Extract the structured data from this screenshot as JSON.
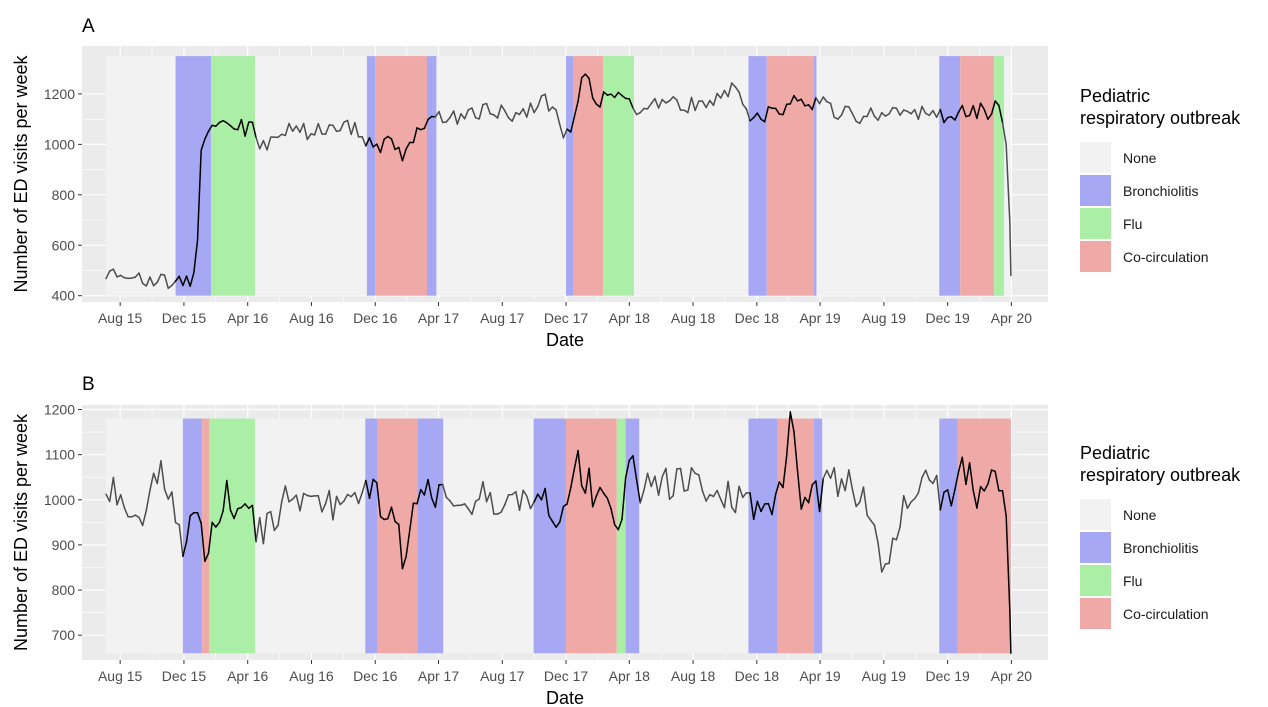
{
  "colors": {
    "panel_bg": "#EBEBEB",
    "grid": "#FFFFFF",
    "None": "#F2F2F2",
    "Bronchiolitis": "#A7A8F3",
    "Flu": "#ABEFA7",
    "Co-circulation": "#EFA9A7",
    "line_outbreak": "#000000",
    "line_none": "#4D4D4D"
  },
  "legend": {
    "title_line1": "Pediatric",
    "title_line2": "respiratory outbreak",
    "items": [
      "None",
      "Bronchiolitis",
      "Flu",
      "Co-circulation"
    ]
  },
  "chart_data": [
    {
      "type": "line",
      "panel": "A",
      "xlabel": "Date",
      "ylabel": "Number of ED visits per week",
      "x_ticks": [
        "Aug 15",
        "Dec 15",
        "Apr 16",
        "Aug 16",
        "Dec 16",
        "Apr 17",
        "Aug 17",
        "Dec 17",
        "Apr 18",
        "Aug 18",
        "Dec 18",
        "Apr 19",
        "Aug 19",
        "Dec 19",
        "Apr 20"
      ],
      "x_tick_dates": [
        "2015-08-01",
        "2015-12-01",
        "2016-04-01",
        "2016-08-01",
        "2016-12-01",
        "2017-04-01",
        "2017-08-01",
        "2017-12-01",
        "2018-04-01",
        "2018-08-01",
        "2018-12-01",
        "2019-04-01",
        "2019-08-01",
        "2019-12-01",
        "2020-04-01"
      ],
      "xlim": [
        "2015-05-20",
        "2020-06-10"
      ],
      "y_ticks": [
        400,
        600,
        800,
        1000,
        1200
      ],
      "ylim": [
        375,
        1390
      ],
      "band_range": [
        400,
        1350
      ],
      "grid": true,
      "legend_position": "right",
      "outbreaks": [
        {
          "type": "Bronchiolitis",
          "start": "2015-11-15",
          "end": "2016-01-22"
        },
        {
          "type": "Flu",
          "start": "2016-01-22",
          "end": "2016-04-15"
        },
        {
          "type": "Bronchiolitis",
          "start": "2016-11-15",
          "end": "2016-12-01"
        },
        {
          "type": "Co-circulation",
          "start": "2016-12-01",
          "end": "2017-03-10"
        },
        {
          "type": "Bronchiolitis",
          "start": "2017-03-10",
          "end": "2017-03-28"
        },
        {
          "type": "Bronchiolitis",
          "start": "2017-12-01",
          "end": "2017-12-15"
        },
        {
          "type": "Co-circulation",
          "start": "2017-12-15",
          "end": "2018-02-10"
        },
        {
          "type": "Flu",
          "start": "2018-02-10",
          "end": "2018-04-10"
        },
        {
          "type": "Bronchiolitis",
          "start": "2018-11-15",
          "end": "2018-12-20"
        },
        {
          "type": "Co-circulation",
          "start": "2018-12-20",
          "end": "2019-03-20"
        },
        {
          "type": "Bronchiolitis",
          "start": "2019-03-20",
          "end": "2019-03-25"
        },
        {
          "type": "Bronchiolitis",
          "start": "2019-11-15",
          "end": "2019-12-25"
        },
        {
          "type": "Co-circulation",
          "start": "2019-12-25",
          "end": "2020-02-28"
        },
        {
          "type": "Flu",
          "start": "2020-02-28",
          "end": "2020-03-18"
        }
      ],
      "series_points": [
        [
          "2015-07-05",
          490
        ],
        [
          "2015-07-25",
          475
        ],
        [
          "2015-08-15",
          455
        ],
        [
          "2015-09-10",
          475
        ],
        [
          "2015-10-10",
          465
        ],
        [
          "2015-11-10",
          455
        ],
        [
          "2015-12-01",
          460
        ],
        [
          "2015-12-20",
          470
        ],
        [
          "2015-12-29",
          640
        ],
        [
          "2016-01-03",
          990
        ],
        [
          "2016-01-22",
          1050
        ],
        [
          "2016-02-20",
          1080
        ],
        [
          "2016-03-20",
          1070
        ],
        [
          "2016-04-10",
          1060
        ],
        [
          "2016-04-20",
          980
        ],
        [
          "2016-06-15",
          1050
        ],
        [
          "2016-08-15",
          1050
        ],
        [
          "2016-10-15",
          1070
        ],
        [
          "2016-11-25",
          1000
        ],
        [
          "2016-12-25",
          1000
        ],
        [
          "2017-01-20",
          960
        ],
        [
          "2017-02-20",
          1060
        ],
        [
          "2017-03-20",
          1120
        ],
        [
          "2017-05-01",
          1100
        ],
        [
          "2017-07-01",
          1130
        ],
        [
          "2017-09-01",
          1120
        ],
        [
          "2017-10-20",
          1180
        ],
        [
          "2017-12-01",
          1040
        ],
        [
          "2017-12-20",
          1100
        ],
        [
          "2018-01-03",
          1340
        ],
        [
          "2018-01-20",
          1190
        ],
        [
          "2018-02-20",
          1170
        ],
        [
          "2018-03-10",
          1220
        ],
        [
          "2018-04-10",
          1150
        ],
        [
          "2018-06-15",
          1170
        ],
        [
          "2018-08-15",
          1150
        ],
        [
          "2018-10-20",
          1220
        ],
        [
          "2018-11-25",
          1100
        ],
        [
          "2018-12-25",
          1120
        ],
        [
          "2019-02-01",
          1160
        ],
        [
          "2019-03-20",
          1170
        ],
        [
          "2019-05-15",
          1120
        ],
        [
          "2019-07-01",
          1110
        ],
        [
          "2019-08-15",
          1150
        ],
        [
          "2019-10-15",
          1120
        ],
        [
          "2019-11-25",
          1110
        ],
        [
          "2019-12-25",
          1140
        ],
        [
          "2020-01-25",
          1130
        ],
        [
          "2020-02-20",
          1130
        ],
        [
          "2020-03-05",
          1180
        ],
        [
          "2020-03-20",
          1040
        ],
        [
          "2020-03-27",
          900
        ],
        [
          "2020-03-31",
          480
        ]
      ]
    },
    {
      "type": "line",
      "panel": "B",
      "xlabel": "Date",
      "ylabel": "Number of ED visits per week",
      "x_ticks": [
        "Aug 15",
        "Dec 15",
        "Apr 16",
        "Aug 16",
        "Dec 16",
        "Apr 17",
        "Aug 17",
        "Dec 17",
        "Apr 18",
        "Aug 18",
        "Dec 18",
        "Apr 19",
        "Aug 19",
        "Dec 19",
        "Apr 20"
      ],
      "x_tick_dates": [
        "2015-08-01",
        "2015-12-01",
        "2016-04-01",
        "2016-08-01",
        "2016-12-01",
        "2017-04-01",
        "2017-08-01",
        "2017-12-01",
        "2018-04-01",
        "2018-08-01",
        "2018-12-01",
        "2019-04-01",
        "2019-08-01",
        "2019-12-01",
        "2020-04-01"
      ],
      "xlim": [
        "2015-05-20",
        "2020-06-10"
      ],
      "y_ticks": [
        700,
        800,
        900,
        1000,
        1100,
        1200
      ],
      "ylim": [
        645,
        1210
      ],
      "band_range": [
        660,
        1180
      ],
      "grid": true,
      "legend_position": "right",
      "outbreaks": [
        {
          "type": "Bronchiolitis",
          "start": "2015-11-29",
          "end": "2016-01-05"
        },
        {
          "type": "Co-circulation",
          "start": "2016-01-05",
          "end": "2016-01-18"
        },
        {
          "type": "Flu",
          "start": "2016-01-18",
          "end": "2016-04-15"
        },
        {
          "type": "Bronchiolitis",
          "start": "2016-11-12",
          "end": "2016-12-05"
        },
        {
          "type": "Co-circulation",
          "start": "2016-12-05",
          "end": "2017-02-20"
        },
        {
          "type": "Bronchiolitis",
          "start": "2017-02-20",
          "end": "2017-04-10"
        },
        {
          "type": "Bronchiolitis",
          "start": "2017-09-30",
          "end": "2017-12-01"
        },
        {
          "type": "Co-circulation",
          "start": "2017-12-01",
          "end": "2018-03-08"
        },
        {
          "type": "Flu",
          "start": "2018-03-08",
          "end": "2018-03-25"
        },
        {
          "type": "Bronchiolitis",
          "start": "2018-03-25",
          "end": "2018-04-20"
        },
        {
          "type": "Bronchiolitis",
          "start": "2018-11-15",
          "end": "2019-01-10"
        },
        {
          "type": "Co-circulation",
          "start": "2019-01-10",
          "end": "2019-03-20"
        },
        {
          "type": "Bronchiolitis",
          "start": "2019-03-20",
          "end": "2019-04-05"
        },
        {
          "type": "Bronchiolitis",
          "start": "2019-11-15",
          "end": "2019-12-20"
        },
        {
          "type": "Co-circulation",
          "start": "2019-12-20",
          "end": "2020-03-31"
        }
      ],
      "series_points": [
        [
          "2015-07-05",
          985
        ],
        [
          "2015-07-20",
          1030
        ],
        [
          "2015-08-10",
          960
        ],
        [
          "2015-08-25",
          1000
        ],
        [
          "2015-09-15",
          950
        ],
        [
          "2015-10-05",
          1070
        ],
        [
          "2015-10-25",
          1050
        ],
        [
          "2015-11-15",
          960
        ],
        [
          "2015-12-01",
          880
        ],
        [
          "2015-12-15",
          1000
        ],
        [
          "2016-01-01",
          990
        ],
        [
          "2016-01-10",
          870
        ],
        [
          "2016-01-25",
          950
        ],
        [
          "2016-02-20",
          1010
        ],
        [
          "2016-03-10",
          960
        ],
        [
          "2016-04-05",
          1000
        ],
        [
          "2016-04-20",
          920
        ],
        [
          "2016-06-15",
          1010
        ],
        [
          "2016-08-15",
          990
        ],
        [
          "2016-10-15",
          990
        ],
        [
          "2016-11-10",
          1060
        ],
        [
          "2016-12-10",
          990
        ],
        [
          "2017-01-05",
          1000
        ],
        [
          "2017-01-25",
          840
        ],
        [
          "2017-02-15",
          980
        ],
        [
          "2017-03-05",
          1010
        ],
        [
          "2017-04-10",
          1020
        ],
        [
          "2017-05-01",
          960
        ],
        [
          "2017-07-01",
          1010
        ],
        [
          "2017-09-01",
          980
        ],
        [
          "2017-10-15",
          1000
        ],
        [
          "2017-11-15",
          940
        ],
        [
          "2017-12-01",
          1000
        ],
        [
          "2017-12-20",
          1090
        ],
        [
          "2018-01-20",
          1020
        ],
        [
          "2018-02-20",
          1000
        ],
        [
          "2018-03-15",
          950
        ],
        [
          "2018-03-30",
          1120
        ],
        [
          "2018-04-20",
          1020
        ],
        [
          "2018-07-01",
          1040
        ],
        [
          "2018-09-01",
          1030
        ],
        [
          "2018-11-10",
          1000
        ],
        [
          "2018-12-20",
          980
        ],
        [
          "2019-01-20",
          1010
        ],
        [
          "2019-02-05",
          1180
        ],
        [
          "2019-02-20",
          990
        ],
        [
          "2019-03-20",
          1000
        ],
        [
          "2019-05-01",
          1050
        ],
        [
          "2019-06-15",
          1020
        ],
        [
          "2019-08-05",
          850
        ],
        [
          "2019-09-15",
          1000
        ],
        [
          "2019-10-20",
          1030
        ],
        [
          "2019-11-20",
          1010
        ],
        [
          "2019-12-10",
          980
        ],
        [
          "2020-01-01",
          1070
        ],
        [
          "2020-01-25",
          1020
        ],
        [
          "2020-02-20",
          1060
        ],
        [
          "2020-03-15",
          1020
        ],
        [
          "2020-03-25",
          940
        ],
        [
          "2020-03-31",
          660
        ]
      ]
    }
  ]
}
